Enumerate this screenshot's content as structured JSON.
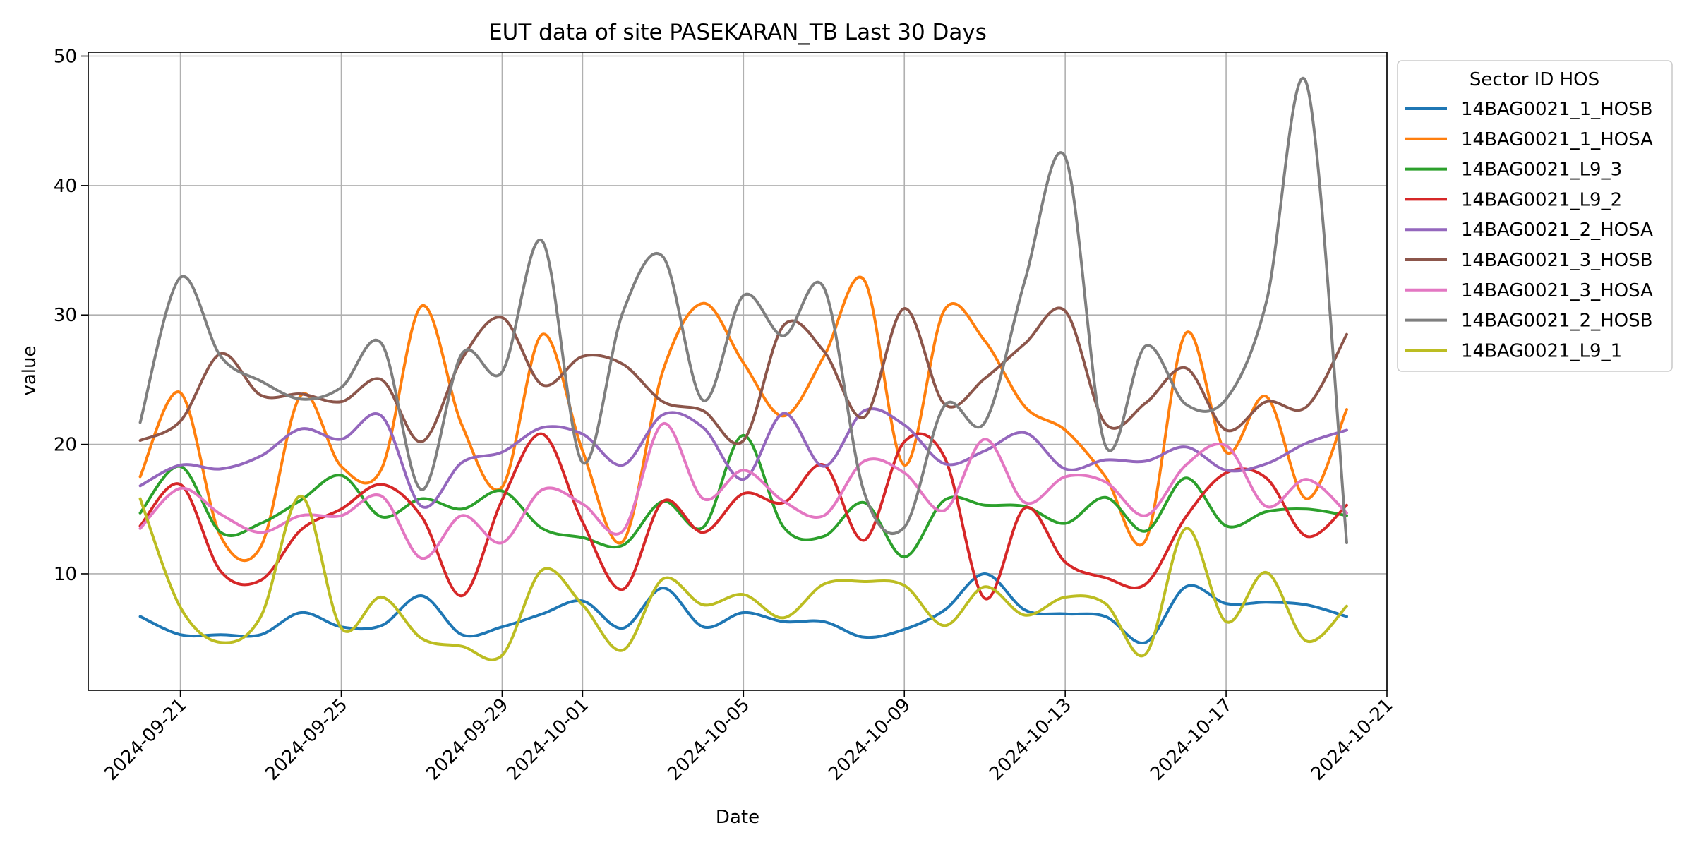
{
  "chart_data": {
    "type": "line",
    "title": "EUT data of site PASEKARAN_TB Last 30 Days",
    "xlabel": "Date",
    "ylabel": "value",
    "x_axis_type": "date",
    "xlim": [
      "2024-09-18T17:00",
      "2024-10-21T00:00"
    ],
    "ylim": [
      1,
      50.3
    ],
    "x_ticks": [
      "2024-09-21",
      "2024-09-25",
      "2024-09-29",
      "2024-10-01",
      "2024-10-05",
      "2024-10-09",
      "2024-10-13",
      "2024-10-17",
      "2024-10-21"
    ],
    "y_ticks": [
      10,
      20,
      30,
      40,
      50
    ],
    "grid": true,
    "legend": {
      "title": "Sector ID HOS",
      "placement": "outside-upper-right"
    },
    "x": [
      "2024-09-20",
      "2024-09-21",
      "2024-09-22",
      "2024-09-23",
      "2024-09-24",
      "2024-09-25",
      "2024-09-26",
      "2024-09-27",
      "2024-09-28",
      "2024-09-29",
      "2024-09-30",
      "2024-10-01",
      "2024-10-02",
      "2024-10-03",
      "2024-10-04",
      "2024-10-05",
      "2024-10-06",
      "2024-10-07",
      "2024-10-08",
      "2024-10-09",
      "2024-10-10",
      "2024-10-11",
      "2024-10-12",
      "2024-10-13",
      "2024-10-14",
      "2024-10-15",
      "2024-10-16",
      "2024-10-17",
      "2024-10-18",
      "2024-10-19",
      "2024-10-20"
    ],
    "series": [
      {
        "name": "14BAG0021_1_HOSB",
        "color": "#1f77b4",
        "values": [
          6.7,
          5.3,
          5.3,
          5.3,
          7.0,
          5.9,
          6.0,
          8.3,
          5.3,
          5.9,
          6.9,
          7.9,
          5.8,
          8.9,
          5.9,
          7.0,
          6.3,
          6.3,
          5.1,
          5.7,
          7.2,
          10.0,
          7.2,
          6.9,
          6.7,
          4.7,
          9.0,
          7.7,
          7.8,
          7.6,
          6.7
        ]
      },
      {
        "name": "14BAG0021_1_HOSA",
        "color": "#ff7f0e",
        "values": [
          17.5,
          24.0,
          12.9,
          12.1,
          23.8,
          18.3,
          18.1,
          30.7,
          21.5,
          16.7,
          28.5,
          19.5,
          12.5,
          25.7,
          30.9,
          26.3,
          22.2,
          26.8,
          32.7,
          18.4,
          30.4,
          28.0,
          22.9,
          21.1,
          17.5,
          12.6,
          28.6,
          19.4,
          23.7,
          15.8,
          22.7
        ]
      },
      {
        "name": "14BAG0021_L9_3",
        "color": "#2ca02c",
        "values": [
          14.7,
          18.3,
          13.2,
          13.9,
          15.7,
          17.6,
          14.4,
          15.8,
          15.0,
          16.4,
          13.5,
          12.8,
          12.2,
          15.6,
          13.6,
          20.7,
          13.6,
          12.9,
          15.5,
          11.3,
          15.7,
          15.3,
          15.2,
          13.9,
          15.9,
          13.3,
          17.4,
          13.7,
          14.8,
          15.0,
          14.5
        ]
      },
      {
        "name": "14BAG0021_L9_2",
        "color": "#d62728",
        "values": [
          13.7,
          16.9,
          10.2,
          9.5,
          13.4,
          15.0,
          16.9,
          14.4,
          8.3,
          15.7,
          20.8,
          14.0,
          8.8,
          15.6,
          13.2,
          16.2,
          15.5,
          18.4,
          12.6,
          20.2,
          19.0,
          8.1,
          15.1,
          10.9,
          9.7,
          9.2,
          14.4,
          17.8,
          17.4,
          12.9,
          15.3
        ]
      },
      {
        "name": "14BAG0021_2_HOSA",
        "color": "#9467bd",
        "values": [
          16.8,
          18.4,
          18.1,
          19.1,
          21.2,
          20.4,
          22.2,
          15.2,
          18.6,
          19.4,
          21.3,
          20.8,
          18.4,
          22.3,
          21.3,
          17.3,
          22.4,
          18.3,
          22.6,
          21.5,
          18.5,
          19.5,
          20.9,
          18.1,
          18.8,
          18.7,
          19.8,
          18.0,
          18.5,
          20.1,
          21.1
        ]
      },
      {
        "name": "14BAG0021_3_HOSB",
        "color": "#8c564b",
        "values": [
          20.3,
          21.8,
          27.0,
          23.8,
          23.9,
          23.3,
          25.0,
          20.2,
          26.6,
          29.8,
          24.6,
          26.8,
          26.2,
          23.3,
          22.6,
          20.3,
          29.2,
          27.2,
          22.1,
          30.5,
          23.1,
          25.1,
          27.8,
          30.3,
          21.6,
          23.2,
          25.9,
          21.1,
          23.3,
          22.9,
          28.5
        ]
      },
      {
        "name": "14BAG0021_3_HOSA",
        "color": "#e377c2",
        "values": [
          13.5,
          16.6,
          14.6,
          13.2,
          14.5,
          14.5,
          16.0,
          11.2,
          14.5,
          12.4,
          16.5,
          15.4,
          13.3,
          21.6,
          15.8,
          18.0,
          15.6,
          14.5,
          18.7,
          17.8,
          14.9,
          20.4,
          15.5,
          17.5,
          17.1,
          14.5,
          18.4,
          19.9,
          15.2,
          17.3,
          14.7
        ]
      },
      {
        "name": "14BAG0021_2_HOSB",
        "color": "#7f7f7f",
        "values": [
          21.7,
          32.9,
          26.8,
          24.9,
          23.5,
          24.4,
          27.8,
          16.5,
          27.0,
          25.6,
          35.7,
          18.6,
          30.2,
          34.5,
          23.4,
          31.5,
          28.4,
          32.1,
          16.3,
          13.6,
          23.0,
          21.7,
          32.7,
          42.2,
          19.9,
          27.6,
          23.1,
          23.5,
          31.0,
          47.9,
          12.4
        ]
      },
      {
        "name": "14BAG0021_L9_1",
        "color": "#bcbd22",
        "values": [
          15.8,
          7.4,
          4.7,
          6.7,
          16.0,
          5.8,
          8.2,
          5.0,
          4.4,
          3.7,
          10.3,
          7.6,
          4.1,
          9.6,
          7.6,
          8.4,
          6.6,
          9.2,
          9.4,
          9.1,
          6.0,
          9.0,
          6.8,
          8.2,
          7.7,
          3.8,
          13.5,
          6.3,
          10.1,
          4.8,
          7.5
        ]
      }
    ]
  }
}
